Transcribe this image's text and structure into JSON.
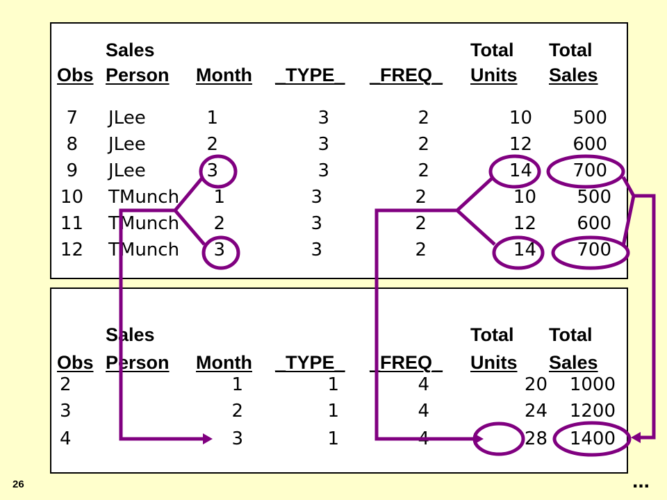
{
  "top_table": {
    "headers_line1": {
      "sales": "Sales",
      "total_units": "Total",
      "total_sales": "Total"
    },
    "headers_line2": {
      "obs": "Obs",
      "person": "Person",
      "month": "Month",
      "type": "_TYPE_",
      "freq": "_FREQ_",
      "units": "Units",
      "sales": "Sales"
    },
    "rows": [
      {
        "obs": "7",
        "person": "JLee",
        "month": "1",
        "type": "3",
        "freq": "2",
        "units": "10",
        "sales": "500"
      },
      {
        "obs": "8",
        "person": "JLee",
        "month": "2",
        "type": "3",
        "freq": "2",
        "units": "12",
        "sales": "600"
      },
      {
        "obs": "9",
        "person": "JLee",
        "month": "3",
        "type": "3",
        "freq": "2",
        "units": "14",
        "sales": "700"
      },
      {
        "obs": "10",
        "person": "TMunch",
        "month": "1",
        "type": "3",
        "freq": "2",
        "units": "10",
        "sales": "500"
      },
      {
        "obs": "11",
        "person": "TMunch",
        "month": "2",
        "type": "3",
        "freq": "2",
        "units": "12",
        "sales": "600"
      },
      {
        "obs": "12",
        "person": "TMunch",
        "month": "3",
        "type": "3",
        "freq": "2",
        "units": "14",
        "sales": "700"
      }
    ]
  },
  "bottom_table": {
    "headers_line1": {
      "sales": "Sales",
      "total_units": "Total",
      "total_sales": "Total"
    },
    "headers_line2": {
      "obs": "Obs",
      "person": "Person",
      "month": "Month",
      "type": "_TYPE_",
      "freq": "_FREQ_",
      "units": "Units",
      "sales": "Sales"
    },
    "rows": [
      {
        "obs": "2",
        "month": "1",
        "type": "1",
        "freq": "4",
        "units": "20",
        "sales": "1000"
      },
      {
        "obs": "3",
        "month": "2",
        "type": "1",
        "freq": "4",
        "units": "24",
        "sales": "1200"
      },
      {
        "obs": "4",
        "month": "3",
        "type": "1",
        "freq": "4",
        "units": "28",
        "sales": "1400"
      }
    ]
  },
  "slide_number": "26",
  "ellipsis": "...",
  "colors": {
    "background": "#FFFFCC",
    "panel": "#FFFFFF",
    "annotation": "#800080"
  }
}
